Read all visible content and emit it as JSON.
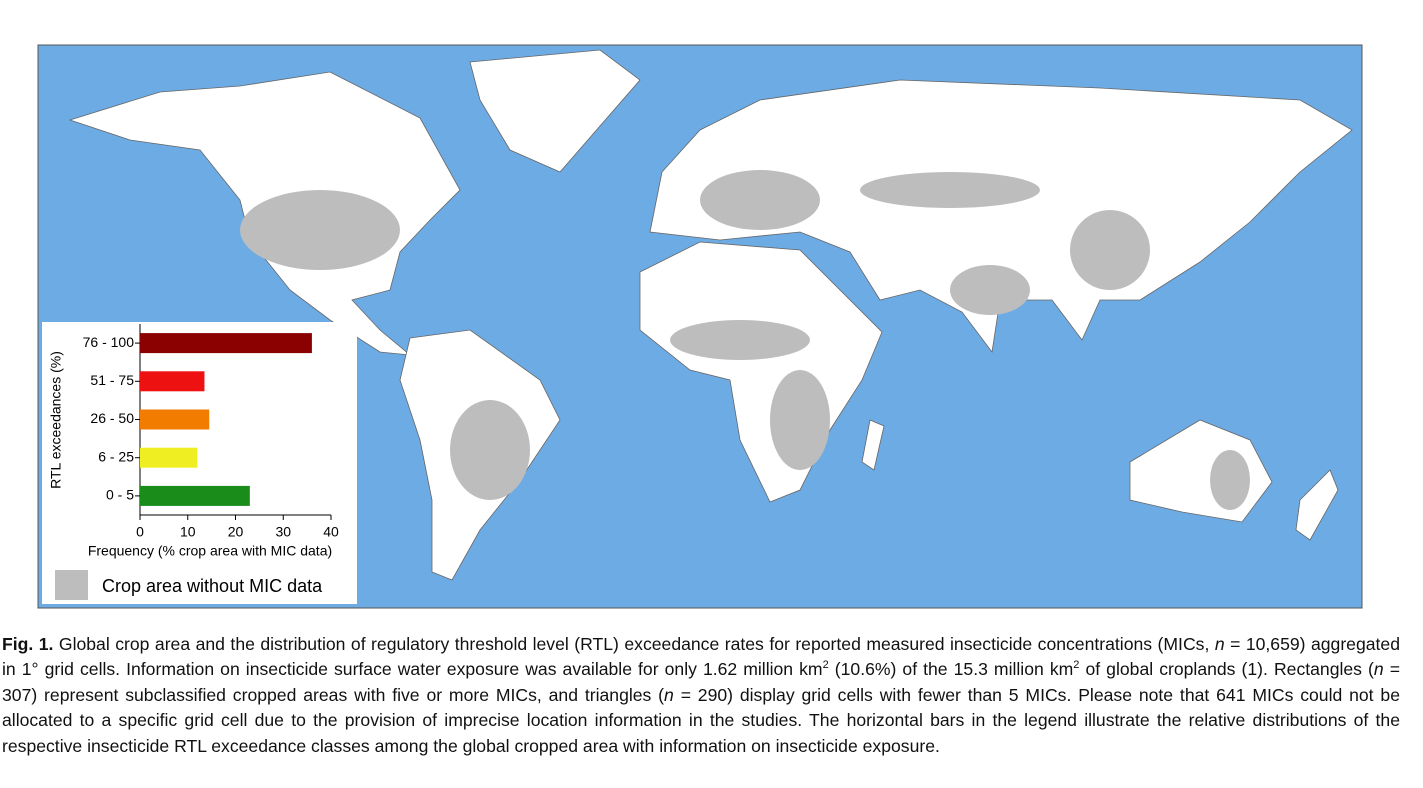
{
  "chart_data": {
    "type": "bar",
    "orientation": "horizontal",
    "categories": [
      "76 - 100",
      "51 - 75",
      "26 - 50",
      "6 - 25",
      "0 - 5"
    ],
    "values": [
      36,
      13.5,
      14.5,
      12,
      23
    ],
    "colors": [
      "#8b0000",
      "#ee1111",
      "#f27c00",
      "#eeee22",
      "#1a8c1a"
    ],
    "xlim": [
      0,
      40
    ],
    "xticks": [
      0,
      10,
      20,
      30,
      40
    ],
    "xlabel": "Frequency (% crop area with MIC data)",
    "ylabel": "RTL exceedances (%)"
  },
  "map_legend": {
    "label": "Crop area without MIC data",
    "color": "#bdbdbd"
  },
  "caption": {
    "label": "Fig. 1.",
    "segments": [
      " Global crop area and the distribution of regulatory threshold level (RTL) exceedance rates for reported measured insecticide concentrations (MICs, ",
      "n",
      " = 10,659) aggregated in 1° grid cells. Information on insecticide surface water exposure was available for only 1.62 million km",
      "2",
      " (10.6%) of the 15.3 million km",
      "2",
      " of global croplands (1). Rectangles (",
      "n",
      " = 307) represent subclassified cropped areas with five or more MICs, and triangles (",
      "n",
      " = 290) display grid cells with fewer than 5 MICs. Please note that 641 MICs could not be allocated to a specific grid cell due to the provision of imprecise location information in the studies. The horizontal bars in the legend illustrate the relative distributions of the respective insecticide RTL exceedance classes among the global cropped area with information on insecticide exposure."
    ]
  }
}
